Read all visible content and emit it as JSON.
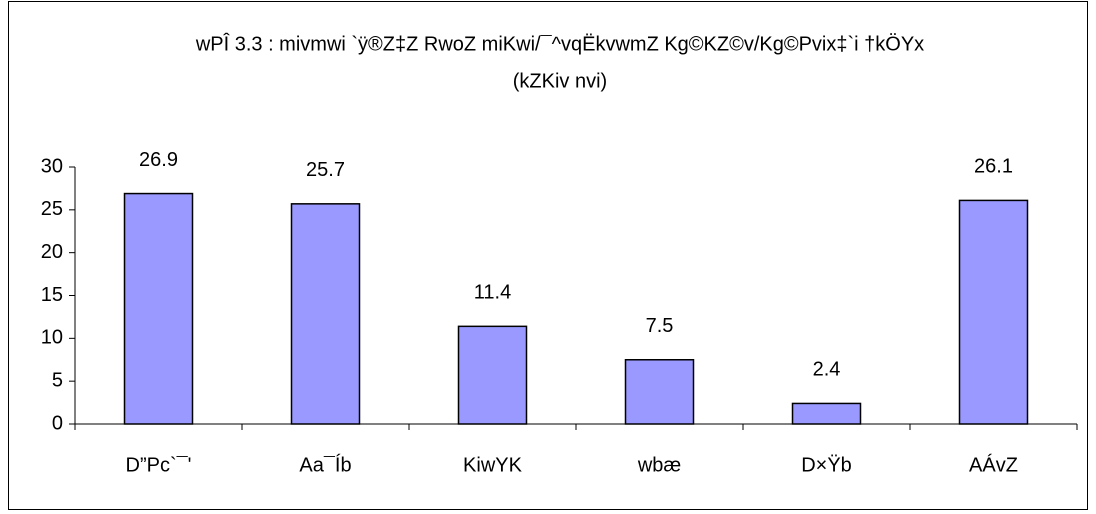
{
  "chart_data": {
    "type": "bar",
    "title": "wPÎ 3.3 : mivmwi `ÿ®Z‡Z RwoZ miKwi/¯^vqËkvwmZ Kg©KZ©v/Kg©Pvix‡`i †kÖYx",
    "subtitle": "(kZKiv nvi)",
    "categories": [
      "D”Pc`¯'",
      "Aa¯Íb",
      "KiwYK",
      "wbæ",
      "D×Ÿb",
      "AÁvZ"
    ],
    "values": [
      26.9,
      25.7,
      11.4,
      7.5,
      2.4,
      26.1
    ],
    "color": "#9999ff",
    "ylim": [
      0,
      30
    ],
    "yticks": [
      0,
      5,
      10,
      15,
      20,
      25,
      30
    ],
    "grid": false
  }
}
